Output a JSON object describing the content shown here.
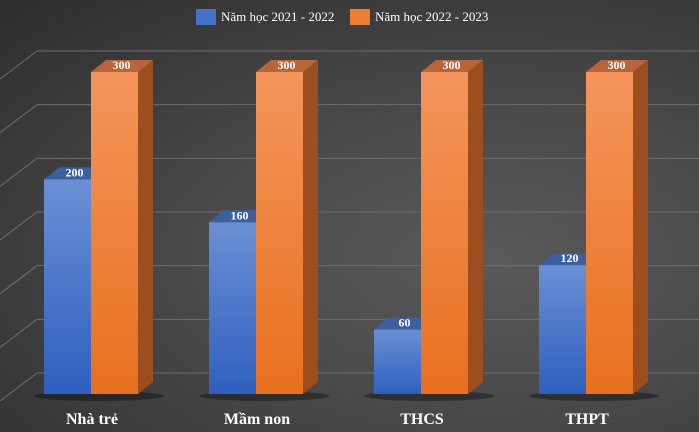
{
  "chart_data": {
    "type": "bar",
    "style": "3d-clustered-column",
    "title": "",
    "categories": [
      "Nhà trẻ",
      "Mầm non",
      "THCS",
      "THPT"
    ],
    "series": [
      {
        "name": "Năm học 2021 - 2022",
        "color": "#4472c4",
        "values": [
          200,
          160,
          60,
          120
        ]
      },
      {
        "name": "Năm học 2022 - 2023",
        "color": "#ed7d31",
        "values": [
          300,
          300,
          300,
          300
        ]
      }
    ],
    "ylim": [
      0,
      300
    ],
    "grid": true,
    "legend": "top-center",
    "xlabel": "",
    "ylabel": ""
  }
}
